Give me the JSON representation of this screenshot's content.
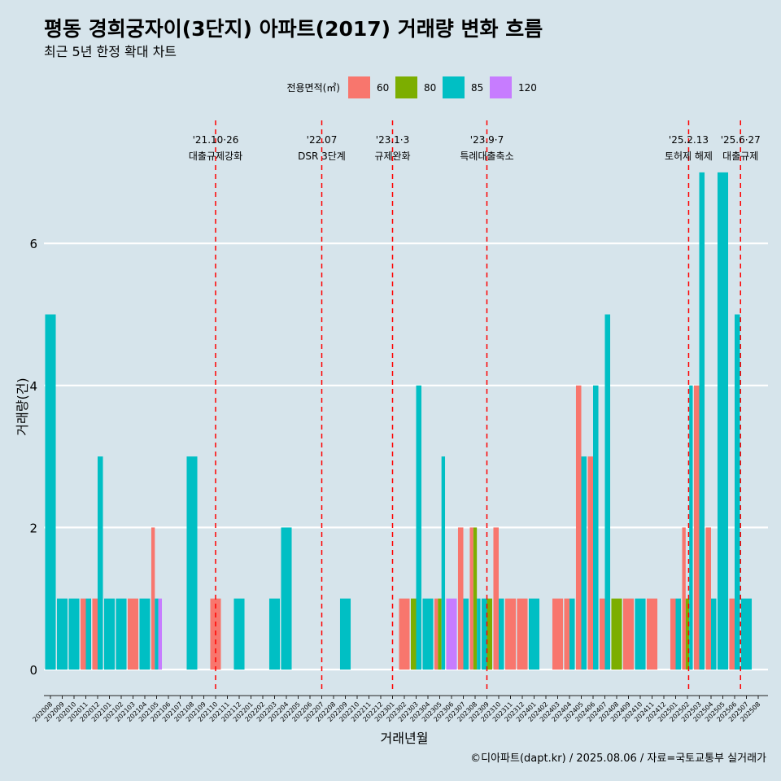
{
  "title": "평동 경희궁자이(3단지) 아파트(2017) 거래량 변화 흐름",
  "subtitle": "최근 5년 한정 확대 차트",
  "caption": "©디아파트(dapt.kr) / 2025.08.06 / 자료=국토교통부 실거래가",
  "chart_data": {
    "type": "bar",
    "title": "평동 경희궁자이(3단지) 아파트(2017) 거래량 변화 흐름",
    "subtitle": "최근 5년 한정 확대 차트",
    "xlabel": "거래년월",
    "ylabel": "거래량(건)",
    "ylim": [
      -0.3,
      7.8
    ],
    "yticks": [
      0,
      2,
      4,
      6
    ],
    "legend": {
      "title": "전용면적(㎡)",
      "position": "top",
      "entries": [
        {
          "name": "60",
          "color": "#f8766d"
        },
        {
          "name": "80",
          "color": "#7cae00"
        },
        {
          "name": "85",
          "color": "#00bfc4"
        },
        {
          "name": "120",
          "color": "#c77cff"
        }
      ]
    },
    "categories": [
      "202008",
      "202009",
      "202010",
      "202011",
      "202012",
      "202101",
      "202102",
      "202103",
      "202104",
      "202105",
      "202106",
      "202107",
      "202108",
      "202109",
      "202110",
      "202111",
      "202112",
      "202201",
      "202202",
      "202203",
      "202204",
      "202205",
      "202206",
      "202207",
      "202208",
      "202209",
      "202210",
      "202211",
      "202212",
      "202301",
      "202302",
      "202303",
      "202304",
      "202305",
      "202306",
      "202307",
      "202308",
      "202309",
      "202310",
      "202311",
      "202312",
      "202401",
      "202402",
      "202403",
      "202404",
      "202405",
      "202406",
      "202407",
      "202408",
      "202409",
      "202410",
      "202411",
      "202412",
      "202501",
      "202502",
      "202503",
      "202504",
      "202505",
      "202506",
      "202507",
      "202508"
    ],
    "bars": [
      {
        "month": "202008",
        "groups": [
          {
            "area": "85",
            "value": 5
          }
        ]
      },
      {
        "month": "202009",
        "groups": [
          {
            "area": "85",
            "value": 1
          }
        ]
      },
      {
        "month": "202010",
        "groups": [
          {
            "area": "85",
            "value": 1
          }
        ]
      },
      {
        "month": "202011",
        "groups": [
          {
            "area": "60",
            "value": 1
          },
          {
            "area": "85",
            "value": 1
          }
        ]
      },
      {
        "month": "202012",
        "groups": [
          {
            "area": "60",
            "value": 1
          },
          {
            "area": "85",
            "value": 3
          }
        ]
      },
      {
        "month": "202101",
        "groups": [
          {
            "area": "85",
            "value": 1
          }
        ]
      },
      {
        "month": "202102",
        "groups": [
          {
            "area": "85",
            "value": 1
          }
        ]
      },
      {
        "month": "202103",
        "groups": [
          {
            "area": "60",
            "value": 1
          }
        ]
      },
      {
        "month": "202104",
        "groups": [
          {
            "area": "85",
            "value": 1
          }
        ]
      },
      {
        "month": "202105",
        "groups": [
          {
            "area": "60",
            "value": 2
          },
          {
            "area": "85",
            "value": 1
          },
          {
            "area": "120",
            "value": 1
          }
        ]
      },
      {
        "month": "202108",
        "groups": [
          {
            "area": "85",
            "value": 3
          }
        ]
      },
      {
        "month": "202110",
        "groups": [
          {
            "area": "60",
            "value": 1
          }
        ]
      },
      {
        "month": "202112",
        "groups": [
          {
            "area": "85",
            "value": 1
          }
        ]
      },
      {
        "month": "202203",
        "groups": [
          {
            "area": "85",
            "value": 1
          }
        ]
      },
      {
        "month": "202204",
        "groups": [
          {
            "area": "85",
            "value": 2
          }
        ]
      },
      {
        "month": "202209",
        "groups": [
          {
            "area": "85",
            "value": 1
          }
        ]
      },
      {
        "month": "202302",
        "groups": [
          {
            "area": "60",
            "value": 1
          }
        ]
      },
      {
        "month": "202303",
        "groups": [
          {
            "area": "80",
            "value": 1
          },
          {
            "area": "85",
            "value": 4
          }
        ]
      },
      {
        "month": "202304",
        "groups": [
          {
            "area": "85",
            "value": 1
          }
        ]
      },
      {
        "month": "202305",
        "groups": [
          {
            "area": "60",
            "value": 1
          },
          {
            "area": "80",
            "value": 1
          },
          {
            "area": "85",
            "value": 3
          }
        ]
      },
      {
        "month": "202306",
        "groups": [
          {
            "area": "120",
            "value": 1
          }
        ]
      },
      {
        "month": "202307",
        "groups": [
          {
            "area": "60",
            "value": 2
          },
          {
            "area": "85",
            "value": 1
          }
        ]
      },
      {
        "month": "202308",
        "groups": [
          {
            "area": "60",
            "value": 2
          },
          {
            "area": "80",
            "value": 2
          },
          {
            "area": "85",
            "value": 1
          }
        ]
      },
      {
        "month": "202309",
        "groups": [
          {
            "area": "85",
            "value": 1
          },
          {
            "area": "80",
            "value": 1
          }
        ]
      },
      {
        "month": "202310",
        "groups": [
          {
            "area": "60",
            "value": 2
          },
          {
            "area": "85",
            "value": 1
          }
        ]
      },
      {
        "month": "202311",
        "groups": [
          {
            "area": "60",
            "value": 1
          }
        ]
      },
      {
        "month": "202312",
        "groups": [
          {
            "area": "60",
            "value": 1
          }
        ]
      },
      {
        "month": "202401",
        "groups": [
          {
            "area": "85",
            "value": 1
          }
        ]
      },
      {
        "month": "202403",
        "groups": [
          {
            "area": "60",
            "value": 1
          }
        ]
      },
      {
        "month": "202404",
        "groups": [
          {
            "area": "60",
            "value": 1
          },
          {
            "area": "85",
            "value": 1
          }
        ]
      },
      {
        "month": "202405",
        "groups": [
          {
            "area": "60",
            "value": 4
          },
          {
            "area": "85",
            "value": 3
          }
        ]
      },
      {
        "month": "202406",
        "groups": [
          {
            "area": "60",
            "value": 3
          },
          {
            "area": "85",
            "value": 4
          }
        ]
      },
      {
        "month": "202407",
        "groups": [
          {
            "area": "60",
            "value": 1
          },
          {
            "area": "85",
            "value": 5
          }
        ]
      },
      {
        "month": "202408",
        "groups": [
          {
            "area": "80",
            "value": 1
          }
        ]
      },
      {
        "month": "202409",
        "groups": [
          {
            "area": "60",
            "value": 1
          }
        ]
      },
      {
        "month": "202410",
        "groups": [
          {
            "area": "85",
            "value": 1
          }
        ]
      },
      {
        "month": "202411",
        "groups": [
          {
            "area": "60",
            "value": 1
          }
        ]
      },
      {
        "month": "202501",
        "groups": [
          {
            "area": "60",
            "value": 1
          },
          {
            "area": "85",
            "value": 1
          }
        ]
      },
      {
        "month": "202502",
        "groups": [
          {
            "area": "60",
            "value": 2
          },
          {
            "area": "80",
            "value": 1
          },
          {
            "area": "85",
            "value": 4
          }
        ]
      },
      {
        "month": "202503",
        "groups": [
          {
            "area": "60",
            "value": 4
          },
          {
            "area": "85",
            "value": 7
          }
        ]
      },
      {
        "month": "202504",
        "groups": [
          {
            "area": "60",
            "value": 2
          },
          {
            "area": "85",
            "value": 1
          }
        ]
      },
      {
        "month": "202505",
        "groups": [
          {
            "area": "85",
            "value": 7
          }
        ]
      },
      {
        "month": "202506",
        "groups": [
          {
            "area": "60",
            "value": 1
          },
          {
            "area": "85",
            "value": 5
          }
        ]
      },
      {
        "month": "202507",
        "groups": [
          {
            "area": "85",
            "value": 1
          }
        ]
      }
    ],
    "events": [
      {
        "position": 14.0,
        "date": "'21.10·26",
        "label": "대출규제강화"
      },
      {
        "position": 23.0,
        "date": "'22.07",
        "label": "DSR 3단계"
      },
      {
        "position": 29.0,
        "date": "'23.1·3",
        "label": "규제완화"
      },
      {
        "position": 37.0,
        "date": "'23.9·7",
        "label": "특례대출축소"
      },
      {
        "position": 54.1,
        "date": "'25.2.13",
        "label": "토허제 해제"
      },
      {
        "position": 58.5,
        "date": "'25.6·27",
        "label": "대출규제"
      }
    ],
    "line_color": "#ff0000",
    "grid": true
  }
}
